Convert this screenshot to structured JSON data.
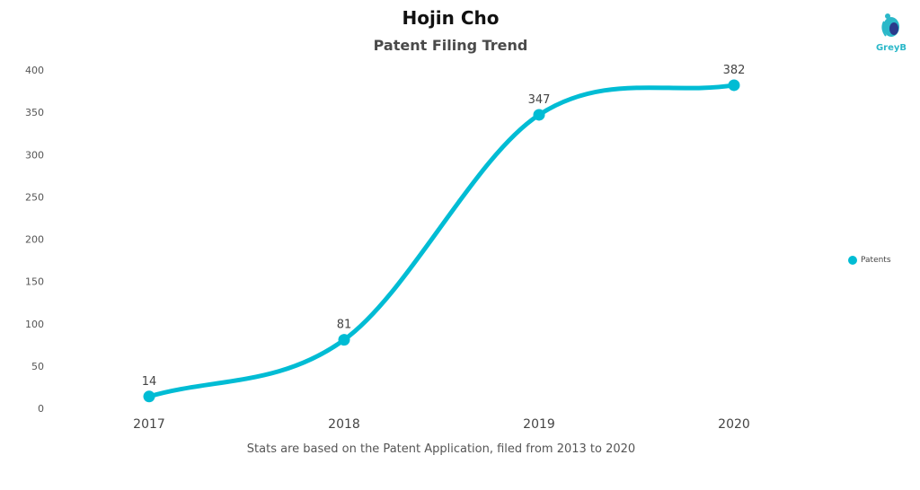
{
  "header": {
    "title": "Hojin Cho",
    "subtitle": "Patent Filing Trend"
  },
  "logo": {
    "text": "GreyB",
    "icon": "greyb-logo-icon",
    "color": "#2bb8c9"
  },
  "footnote": "Stats are based on the Patent Application, filed from 2013 to 2020",
  "chart_data": {
    "type": "line",
    "title": "Hojin Cho",
    "subtitle": "Patent Filing Trend",
    "xlabel": "",
    "ylabel": "",
    "categories": [
      "2017",
      "2018",
      "2019",
      "2020"
    ],
    "series": [
      {
        "name": "Patents",
        "values": [
          14,
          81,
          347,
          382
        ],
        "color": "#00bcd4"
      }
    ],
    "ylim": [
      0,
      400
    ],
    "yticks": [
      0,
      50,
      100,
      150,
      200,
      250,
      300,
      350,
      400
    ],
    "grid": false,
    "legend": "right",
    "smooth": true
  }
}
